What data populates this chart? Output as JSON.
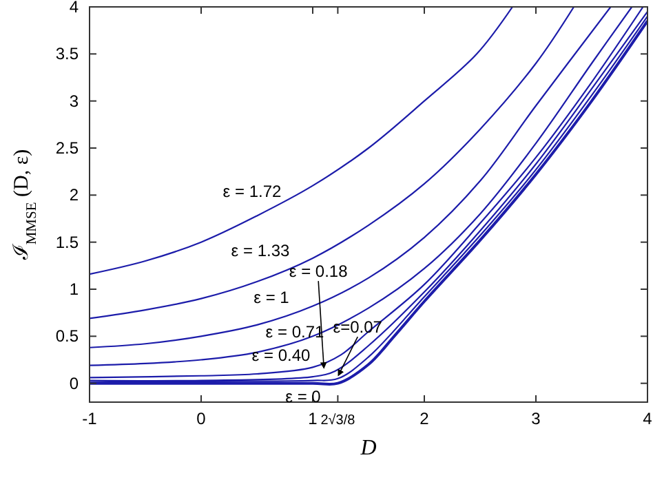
{
  "chart_data": {
    "type": "line",
    "xlabel": "D",
    "ylabel": "ℐ$_{MMSE}$ (D, ε)",
    "xlim": [
      -1,
      4
    ],
    "ylim": [
      -0.2,
      4
    ],
    "xticks": [
      -1,
      0,
      1,
      {
        "value": 1.2247,
        "label": "2√3/8"
      },
      2,
      3,
      4
    ],
    "yticks": [
      0,
      0.5,
      1,
      1.5,
      2,
      2.5,
      3,
      3.5,
      4
    ],
    "grid": false,
    "marker": "none",
    "line_style": "solid",
    "series": [
      {
        "color": "#1c1caa",
        "x": [
          -1,
          -0.5,
          0,
          0.5,
          1,
          1.5,
          2,
          2.47,
          2.79
        ],
        "values": [
          1.16,
          1.3,
          1.5,
          1.78,
          2.1,
          2.5,
          3.0,
          3.5,
          4
        ]
      },
      {
        "color": "#1c1caa",
        "x": [
          -1,
          -0.5,
          0,
          0.5,
          1,
          1.5,
          2,
          2.5,
          3,
          3.34
        ],
        "values": [
          0.69,
          0.78,
          0.9,
          1.08,
          1.33,
          1.68,
          2.12,
          2.7,
          3.4,
          4
        ]
      },
      {
        "color": "#1c1caa",
        "x": [
          -1,
          -0.5,
          0,
          0.5,
          1,
          1.5,
          2,
          2.5,
          3,
          3.67
        ],
        "values": [
          0.38,
          0.42,
          0.5,
          0.62,
          0.82,
          1.12,
          1.55,
          2.15,
          2.95,
          4
        ]
      },
      {
        "color": "#1c1caa",
        "x": [
          -1,
          -0.5,
          0,
          0.5,
          1,
          1.5,
          2,
          2.5,
          3,
          3.5,
          3.86
        ],
        "values": [
          0.19,
          0.21,
          0.25,
          0.33,
          0.5,
          0.8,
          1.22,
          1.8,
          2.55,
          3.4,
          4
        ]
      },
      {
        "color": "#1c1caa",
        "x": [
          -1,
          0,
          0.5,
          1,
          1.25,
          1.5,
          2,
          2.5,
          3,
          3.5,
          3.96
        ],
        "values": [
          0.06,
          0.08,
          0.1,
          0.17,
          0.3,
          0.55,
          1.05,
          1.7,
          2.4,
          3.2,
          4
        ]
      },
      {
        "color": "#1c1caa",
        "x": [
          -1,
          0,
          1,
          1.2,
          1.5,
          2,
          2.5,
          3,
          3.5,
          4
        ],
        "values": [
          0.03,
          0.03,
          0.07,
          0.13,
          0.4,
          0.97,
          1.62,
          2.33,
          3.13,
          3.95
        ]
      },
      {
        "color": "#1c1caa",
        "x": [
          -1,
          0,
          1,
          1.2247,
          1.5,
          2,
          2.5,
          3,
          3.5,
          4
        ],
        "values": [
          0.01,
          0.02,
          0.03,
          0.05,
          0.28,
          0.92,
          1.57,
          2.27,
          3.06,
          3.9
        ]
      },
      {
        "color": "#1c1caa",
        "x": [
          -1,
          0,
          1,
          1.2247,
          1.5,
          1.73,
          2,
          2.5,
          3,
          3.5,
          4
        ],
        "values": [
          0,
          0,
          0,
          0,
          0.2,
          0.5,
          0.87,
          1.52,
          2.22,
          3.0,
          3.85
        ]
      }
    ],
    "annotations": [
      "ε = 1.72",
      "ε = 1.33",
      "ε = 1",
      "ε = 0.71",
      "ε = 0.40",
      {
        "text": "ε = 0.18",
        "x": 1.1,
        "y": 0.15
      },
      {
        "text": "ε=0.07",
        "x": 1.23,
        "y": 0.07
      },
      "ε = 0"
    ]
  }
}
